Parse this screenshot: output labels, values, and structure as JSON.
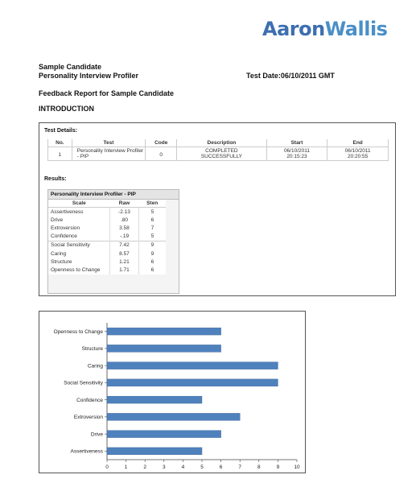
{
  "brand": {
    "logo_part1": "Aaron",
    "logo_part2": "Wallis",
    "colors": {
      "primary": "#3d6eb0",
      "secondary": "#4a8fc8"
    }
  },
  "header": {
    "candidate_name": "Sample Candidate",
    "test_name": "Personality Interview Profiler",
    "test_date": "Test Date:06/10/2011 GMT",
    "report_title": "Feedback Report for Sample Candidate",
    "section": "INTRODUCTION"
  },
  "test_details": {
    "label": "Test Details:",
    "columns": [
      "No.",
      "Test",
      "Code",
      "Description",
      "Start",
      "End"
    ],
    "rows": [
      {
        "no": "1",
        "test": "Personality Interview Profiler - PIP",
        "code": "0",
        "description": "COMPLETED SUCCESSFULLY",
        "start": "06/10/2011 20:15:23",
        "end": "06/10/2011 20:20:55"
      }
    ]
  },
  "results": {
    "label": "Results:",
    "table_title": "Personality Interview Profiler - PIP",
    "columns": [
      "Scale",
      "Raw",
      "Sten"
    ],
    "rows": [
      {
        "scale": "Assertiveness",
        "raw": "-2.13",
        "sten": "5"
      },
      {
        "scale": "Drive",
        "raw": ".80",
        "sten": "6"
      },
      {
        "scale": "Extroversion",
        "raw": "3.58",
        "sten": "7"
      },
      {
        "scale": "Confidence",
        "raw": "-.19",
        "sten": "5"
      },
      {
        "scale": "Social Sensitivity",
        "raw": "7.42",
        "sten": "9"
      },
      {
        "scale": "Caring",
        "raw": "8.57",
        "sten": "9"
      },
      {
        "scale": "Structure",
        "raw": "1.21",
        "sten": "6"
      },
      {
        "scale": "Openness to Change",
        "raw": "1.71",
        "sten": "6"
      }
    ]
  },
  "chart_data": {
    "type": "bar",
    "orientation": "horizontal",
    "categories": [
      "Openness to Change",
      "Structure",
      "Caring",
      "Social Sensitivity",
      "Confidence",
      "Extroversion",
      "Drive",
      "Assertiveness"
    ],
    "values": [
      6,
      6,
      9,
      9,
      5,
      7,
      6,
      5
    ],
    "xlim": [
      0,
      10
    ],
    "xticks": [
      "0",
      "1",
      "2",
      "3",
      "4",
      "5",
      "6",
      "7",
      "8",
      "9",
      "10"
    ],
    "grid": false,
    "legend": "none",
    "bar_color": "#4f81bd"
  }
}
